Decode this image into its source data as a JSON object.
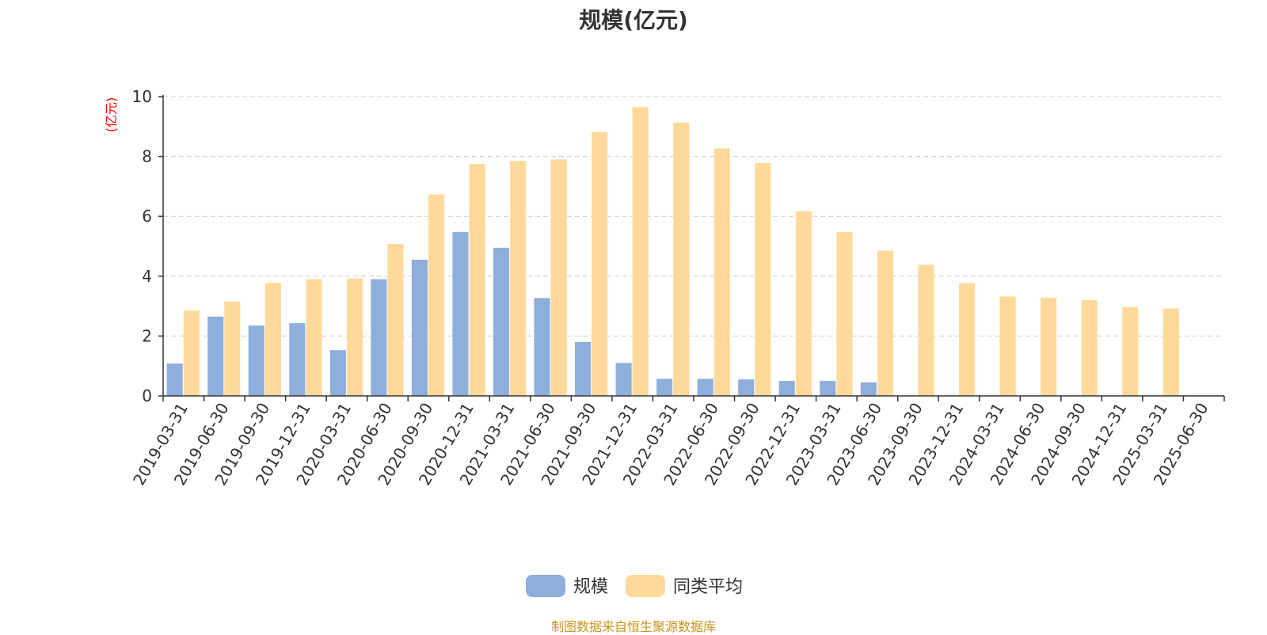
{
  "chart_data": {
    "type": "bar",
    "title": "规模(亿元)",
    "ylabel": "(亿元)",
    "ylim": [
      0,
      10
    ],
    "yticks": [
      0,
      2,
      4,
      6,
      8,
      10
    ],
    "grid": true,
    "legend_position": "bottom-center",
    "categories": [
      "2019-03-31",
      "2019-06-30",
      "2019-09-30",
      "2019-12-31",
      "2020-03-31",
      "2020-06-30",
      "2020-09-30",
      "2020-12-31",
      "2021-03-31",
      "2021-06-30",
      "2021-09-30",
      "2021-12-31",
      "2022-03-31",
      "2022-06-30",
      "2022-09-30",
      "2022-12-31",
      "2023-03-31",
      "2023-06-30",
      "2023-09-30",
      "2023-12-31",
      "2024-03-31",
      "2024-06-30",
      "2024-09-30",
      "2024-12-31",
      "2025-03-31",
      "2025-06-30"
    ],
    "series": [
      {
        "name": "规模",
        "color": "#8eaedc",
        "values": [
          1.08,
          2.65,
          2.35,
          2.43,
          1.53,
          3.9,
          4.55,
          5.48,
          4.95,
          3.27,
          1.8,
          1.1,
          0.57,
          0.57,
          0.55,
          0.5,
          0.5,
          0.45,
          null,
          null,
          null,
          null,
          null,
          null,
          null,
          null
        ]
      },
      {
        "name": "同类平均",
        "color": "#ffd99a",
        "values": [
          2.85,
          3.15,
          3.78,
          3.9,
          3.92,
          5.08,
          6.73,
          7.75,
          7.85,
          7.9,
          8.82,
          9.65,
          9.13,
          8.27,
          7.78,
          6.17,
          5.48,
          4.85,
          4.38,
          3.77,
          3.32,
          3.28,
          3.2,
          2.97,
          2.92,
          null
        ]
      }
    ],
    "source": "制图数据来自恒生聚源数据库",
    "axis_label_color": "#ff0000",
    "source_color": "#c8961e"
  }
}
